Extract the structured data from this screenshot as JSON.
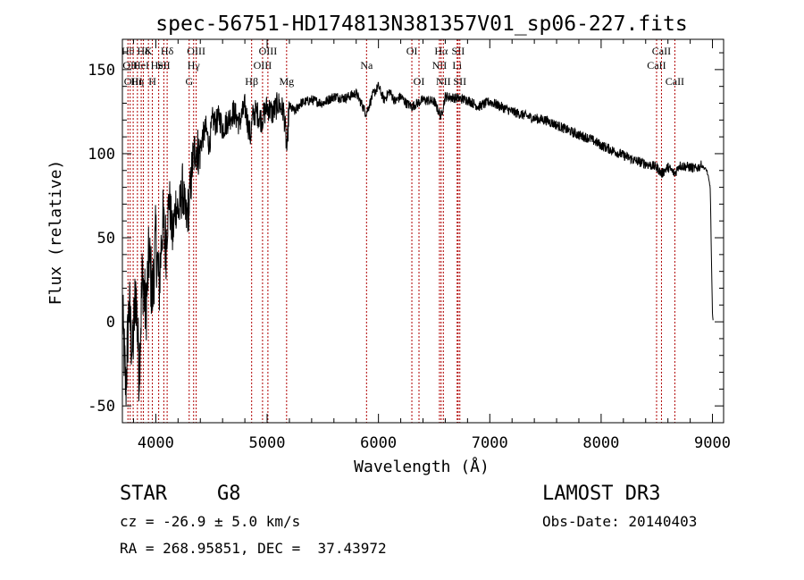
{
  "chart_data": {
    "type": "line",
    "title": "spec-56751-HD174813N381357V01_sp06-227.fits",
    "xlabel": "Wavelength (Å)",
    "ylabel": "Flux (relative)",
    "xlim": [
      3700,
      9100
    ],
    "ylim": [
      -60,
      168
    ],
    "x_ticks": [
      4000,
      5000,
      6000,
      7000,
      8000,
      9000
    ],
    "y_ticks": [
      -50,
      0,
      50,
      100,
      150
    ],
    "grid": false,
    "series": [
      {
        "name": "flux",
        "x": [
          3700,
          3730,
          3760,
          3790,
          3820,
          3850,
          3880,
          3910,
          3940,
          3970,
          4000,
          4030,
          4060,
          4090,
          4120,
          4150,
          4180,
          4210,
          4240,
          4270,
          4300,
          4330,
          4360,
          4390,
          4420,
          4450,
          4480,
          4510,
          4540,
          4570,
          4600,
          4650,
          4700,
          4750,
          4800,
          4850,
          4870,
          4900,
          4950,
          5000,
          5050,
          5100,
          5150,
          5180,
          5190,
          5200,
          5250,
          5300,
          5400,
          5500,
          5600,
          5700,
          5800,
          5890,
          5950,
          6000,
          6050,
          6100,
          6150,
          6200,
          6250,
          6300,
          6400,
          6500,
          6562,
          6600,
          6700,
          6800,
          6900,
          7000,
          7100,
          7200,
          7300,
          7400,
          7500,
          7600,
          7700,
          7800,
          7900,
          8000,
          8100,
          8200,
          8300,
          8400,
          8500,
          8542,
          8600,
          8662,
          8700,
          8800,
          8850,
          8900,
          8950,
          8980,
          8990,
          9000,
          9005
        ],
        "y": [
          5,
          -40,
          10,
          -20,
          20,
          -30,
          30,
          5,
          40,
          15,
          50,
          20,
          60,
          45,
          75,
          50,
          70,
          65,
          80,
          60,
          70,
          95,
          105,
          100,
          110,
          115,
          105,
          120,
          118,
          122,
          115,
          120,
          125,
          118,
          128,
          110,
          122,
          125,
          120,
          128,
          124,
          130,
          125,
          100,
          120,
          128,
          125,
          130,
          132,
          130,
          134,
          133,
          136,
          124,
          135,
          140,
          132,
          137,
          131,
          134,
          130,
          128,
          132,
          131,
          122,
          134,
          133,
          132,
          128,
          131,
          128,
          125,
          123,
          121,
          120,
          117,
          114,
          111,
          109,
          105,
          102,
          99,
          96,
          94,
          92,
          88,
          92,
          88,
          93,
          92,
          91,
          93,
          90,
          80,
          40,
          5,
          0
        ]
      }
    ],
    "lines": [
      {
        "wl": 3750,
        "label": "Hθ",
        "row": 1
      },
      {
        "wl": 3770,
        "label": "OII",
        "row": 2
      },
      {
        "wl": 3797,
        "label": "OIII",
        "row": 3
      },
      {
        "wl": 3835,
        "label": "Hη",
        "row": 3
      },
      {
        "wl": 3869,
        "label": "HeI",
        "row": 2
      },
      {
        "wl": 3889,
        "label": "Hδ",
        "row": 1
      },
      {
        "wl": 3934,
        "label": "K",
        "row": 1
      },
      {
        "wl": 3969,
        "label": "H",
        "row": 3
      },
      {
        "wl": 4026,
        "label": "HeI",
        "row": 2
      },
      {
        "wl": 4072,
        "label": "SII",
        "row": 2
      },
      {
        "wl": 4102,
        "label": "Hδ",
        "row": 1
      },
      {
        "wl": 4300,
        "label": "G",
        "row": 3
      },
      {
        "wl": 4340,
        "label": "Hγ",
        "row": 2
      },
      {
        "wl": 4363,
        "label": "OIII",
        "row": 1
      },
      {
        "wl": 4861,
        "label": "Hβ",
        "row": 3
      },
      {
        "wl": 4959,
        "label": "OIII",
        "row": 2
      },
      {
        "wl": 5007,
        "label": "OIII",
        "row": 1
      },
      {
        "wl": 5175,
        "label": "Mg",
        "row": 3
      },
      {
        "wl": 5893,
        "label": "Na",
        "row": 2
      },
      {
        "wl": 6300,
        "label": "OI",
        "row": 1
      },
      {
        "wl": 6364,
        "label": "OI",
        "row": 3
      },
      {
        "wl": 6548,
        "label": "NII",
        "row": 2
      },
      {
        "wl": 6563,
        "label": "Hα",
        "row": 1
      },
      {
        "wl": 6583,
        "label": "NII",
        "row": 3
      },
      {
        "wl": 6707,
        "label": "Li",
        "row": 2
      },
      {
        "wl": 6716,
        "label": "SII",
        "row": 1
      },
      {
        "wl": 6731,
        "label": "SII",
        "row": 3
      },
      {
        "wl": 8498,
        "label": "CaII",
        "row": 2
      },
      {
        "wl": 8542,
        "label": "CaII",
        "row": 1
      },
      {
        "wl": 8662,
        "label": "CaII",
        "row": 3
      }
    ]
  },
  "info": {
    "class_label": "STAR",
    "subclass": "G8",
    "survey": "LAMOST DR3",
    "redshift": "cz = -26.9 ± 5.0 km/s",
    "obs_date": "Obs-Date: 20140403",
    "coords": "RA = 268.95851, DEC =  37.43972"
  },
  "colors": {
    "line": "#000000",
    "marker": "#b00000"
  }
}
